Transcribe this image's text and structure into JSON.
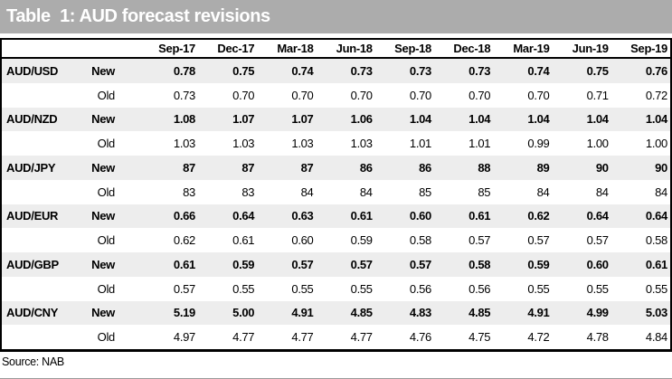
{
  "title": "Table  1: AUD forecast revisions",
  "source": "Source: NAB",
  "colors": {
    "title_bar_bg": "#acacac",
    "title_text": "#ffffff",
    "new_row_bg": "#ededed",
    "old_row_bg": "#ffffff",
    "border": "#000000"
  },
  "table": {
    "columns": [
      "Sep-17",
      "Dec-17",
      "Mar-18",
      "Jun-18",
      "Sep-18",
      "Dec-18",
      "Mar-19",
      "Jun-19",
      "Sep-19"
    ],
    "rows": [
      {
        "pair": "AUD/USD",
        "series": [
          {
            "label": "New",
            "values": [
              "0.78",
              "0.75",
              "0.74",
              "0.73",
              "0.73",
              "0.73",
              "0.74",
              "0.75",
              "0.76"
            ]
          },
          {
            "label": "Old",
            "values": [
              "0.73",
              "0.70",
              "0.70",
              "0.70",
              "0.70",
              "0.70",
              "0.70",
              "0.71",
              "0.72"
            ]
          }
        ]
      },
      {
        "pair": "AUD/NZD",
        "series": [
          {
            "label": "New",
            "values": [
              "1.08",
              "1.07",
              "1.07",
              "1.06",
              "1.04",
              "1.04",
              "1.04",
              "1.04",
              "1.04"
            ]
          },
          {
            "label": "Old",
            "values": [
              "1.03",
              "1.03",
              "1.03",
              "1.03",
              "1.01",
              "1.01",
              "0.99",
              "1.00",
              "1.00"
            ]
          }
        ]
      },
      {
        "pair": "AUD/JPY",
        "series": [
          {
            "label": "New",
            "values": [
              "87",
              "87",
              "87",
              "86",
              "86",
              "88",
              "89",
              "90",
              "90"
            ]
          },
          {
            "label": "Old",
            "values": [
              "83",
              "83",
              "84",
              "84",
              "85",
              "85",
              "84",
              "84",
              "84"
            ]
          }
        ]
      },
      {
        "pair": "AUD/EUR",
        "series": [
          {
            "label": "New",
            "values": [
              "0.66",
              "0.64",
              "0.63",
              "0.61",
              "0.60",
              "0.61",
              "0.62",
              "0.64",
              "0.64"
            ]
          },
          {
            "label": "Old",
            "values": [
              "0.62",
              "0.61",
              "0.60",
              "0.59",
              "0.58",
              "0.57",
              "0.57",
              "0.57",
              "0.58"
            ]
          }
        ]
      },
      {
        "pair": "AUD/GBP",
        "series": [
          {
            "label": "New",
            "values": [
              "0.61",
              "0.59",
              "0.57",
              "0.57",
              "0.57",
              "0.58",
              "0.59",
              "0.60",
              "0.61"
            ]
          },
          {
            "label": "Old",
            "values": [
              "0.57",
              "0.55",
              "0.55",
              "0.55",
              "0.56",
              "0.56",
              "0.55",
              "0.55",
              "0.55"
            ]
          }
        ]
      },
      {
        "pair": "AUD/CNY",
        "series": [
          {
            "label": "New",
            "values": [
              "5.19",
              "5.00",
              "4.91",
              "4.85",
              "4.83",
              "4.85",
              "4.91",
              "4.99",
              "5.03"
            ]
          },
          {
            "label": "Old",
            "values": [
              "4.97",
              "4.77",
              "4.77",
              "4.77",
              "4.76",
              "4.75",
              "4.72",
              "4.78",
              "4.84"
            ]
          }
        ]
      }
    ]
  }
}
